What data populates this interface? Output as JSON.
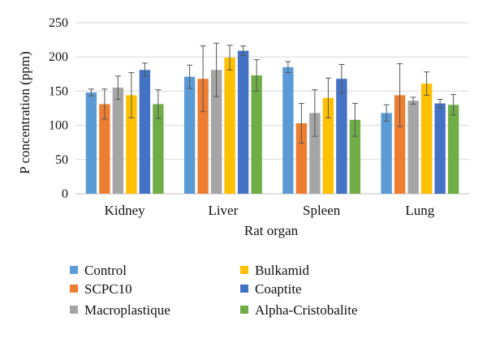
{
  "chart_data": {
    "type": "bar",
    "title": "",
    "xlabel": "Rat organ",
    "ylabel": "P concentration (ppm)",
    "ylim": [
      0,
      250
    ],
    "yticks": [
      0,
      50,
      100,
      150,
      200,
      250
    ],
    "grid": true,
    "legend_position": "bottom",
    "categories": [
      "Kidney",
      "Liver",
      "Spleen",
      "Lung"
    ],
    "series": [
      {
        "name": "Control",
        "color": "#5b9bd5",
        "values": [
          148,
          171,
          185,
          118
        ],
        "errors": [
          5,
          17,
          8,
          12
        ]
      },
      {
        "name": "SCPC10",
        "color": "#ed7d31",
        "values": [
          131,
          168,
          103,
          144
        ],
        "errors": [
          22,
          48,
          29,
          46
        ]
      },
      {
        "name": "Macroplastique",
        "color": "#a5a5a5",
        "values": [
          155,
          181,
          118,
          136
        ],
        "errors": [
          17,
          39,
          34,
          5
        ]
      },
      {
        "name": "Bulkamid",
        "color": "#ffc000",
        "values": [
          144,
          199,
          140,
          161
        ],
        "errors": [
          33,
          18,
          29,
          17
        ]
      },
      {
        "name": "Coaptite",
        "color": "#4472c4",
        "values": [
          181,
          209,
          168,
          132
        ],
        "errors": [
          10,
          7,
          21,
          6
        ]
      },
      {
        "name": "Alpha-Cristobalite",
        "color": "#70ad47",
        "values": [
          131,
          173,
          108,
          130
        ],
        "errors": [
          21,
          23,
          24,
          15
        ]
      }
    ]
  }
}
